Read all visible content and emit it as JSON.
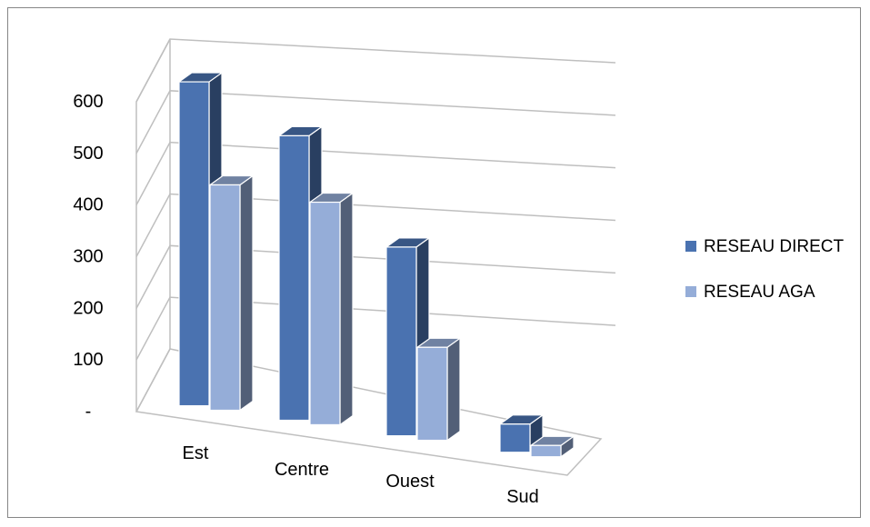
{
  "chart_data": {
    "type": "bar",
    "style": "3d-clustered-column",
    "categories": [
      "Est",
      "Centre",
      "Ouest",
      "Sud"
    ],
    "series": [
      {
        "name": "RESEAU DIRECT",
        "values": [
          575,
          505,
          335,
          50
        ],
        "color": "#4a72b0"
      },
      {
        "name": "RESEAU AGA",
        "values": [
          400,
          395,
          165,
          20
        ],
        "color": "#95add8"
      }
    ],
    "yticks": [
      "-",
      "100",
      "200",
      "300",
      "400",
      "500",
      "600"
    ],
    "ylim": [
      0,
      600
    ],
    "grid": true,
    "legend_position": "right",
    "title": "",
    "xlabel": "",
    "ylabel": ""
  }
}
